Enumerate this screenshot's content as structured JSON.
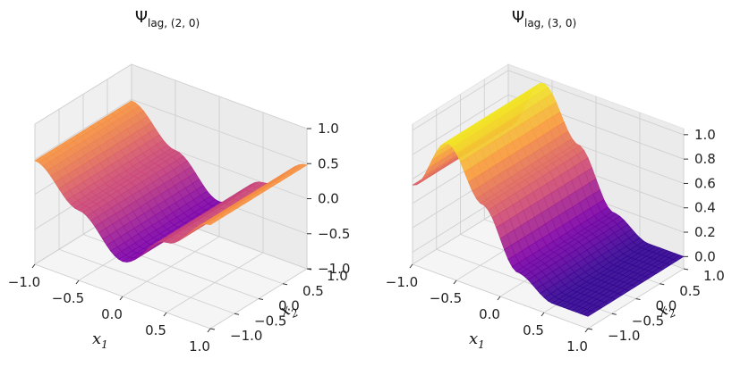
{
  "chart_data": [
    {
      "type": "surface3d",
      "title": {
        "main": "Ψ",
        "sub": "lag, (2, 0)"
      },
      "xlabel": {
        "main": "x",
        "sub": "1"
      },
      "ylabel": {
        "main": "x",
        "sub": "2"
      },
      "xlim": [
        -1,
        1
      ],
      "ylim": [
        -1,
        1
      ],
      "zlim": [
        -1,
        1
      ],
      "xticks": [
        "−1.0",
        "−0.5",
        "0.0",
        "0.5",
        "1.0"
      ],
      "yticks": [
        "−1.0",
        "−0.5",
        "0.0",
        "0.5",
        "1.0"
      ],
      "zticks": [
        "−1.0",
        "−0.5",
        "0.0",
        "0.5",
        "1.0"
      ],
      "z_profile_along_x1": [
        [
          -1.0,
          0.48
        ],
        [
          -0.5,
          0.0
        ],
        [
          0.0,
          -0.5
        ],
        [
          0.5,
          0.0
        ],
        [
          1.0,
          0.48
        ]
      ],
      "z_constant_along_x2": true,
      "colormap": "plasma"
    },
    {
      "type": "surface3d",
      "title": {
        "main": "Ψ",
        "sub": "lag, (3, 0)"
      },
      "xlabel": {
        "main": "x",
        "sub": "1"
      },
      "ylabel": {
        "main": "x",
        "sub": "2"
      },
      "xlim": [
        -1,
        1
      ],
      "ylim": [
        -1,
        1
      ],
      "zlim": [
        -0.1,
        1.05
      ],
      "xticks": [
        "−1.0",
        "−0.5",
        "0.0",
        "0.5",
        "1.0"
      ],
      "yticks": [
        "−1.0",
        "−0.5",
        "0.0",
        "0.5",
        "1.0"
      ],
      "zticks": [
        "0.0",
        "0.2",
        "0.4",
        "0.6",
        "0.8",
        "1.0"
      ],
      "z_profile_along_x1": [
        [
          -1.0,
          0.55
        ],
        [
          -0.6,
          1.0
        ],
        [
          -0.2,
          0.6
        ],
        [
          0.2,
          0.15
        ],
        [
          0.6,
          0.0
        ],
        [
          1.0,
          0.0
        ]
      ],
      "z_constant_along_x2": true,
      "colormap": "plasma"
    }
  ]
}
